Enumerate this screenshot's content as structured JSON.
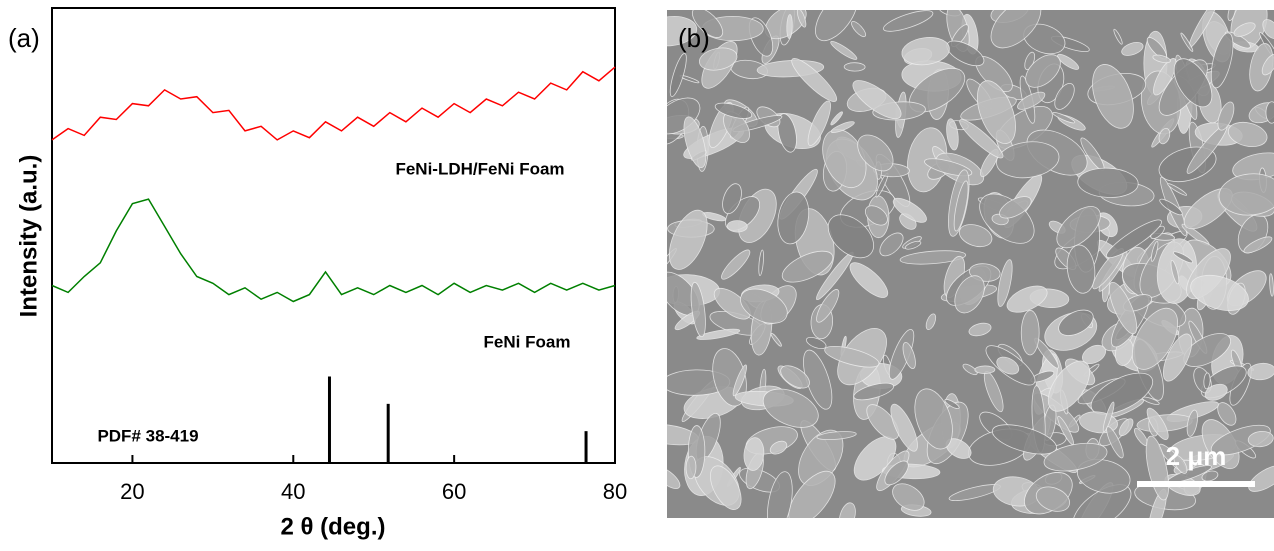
{
  "chart_data": {
    "type": "line",
    "panel_label": "(a)",
    "x_label": "2 θ (deg.)",
    "y_label": "Intensity (a.u.)",
    "xlim": [
      10,
      80
    ],
    "xticks": [
      20,
      40,
      60,
      80
    ],
    "ylim": [
      0,
      100
    ],
    "x": [
      10,
      12,
      14,
      16,
      18,
      20,
      22,
      24,
      26,
      28,
      30,
      32,
      34,
      36,
      38,
      40,
      42,
      44,
      46,
      48,
      50,
      52,
      54,
      56,
      58,
      60,
      62,
      64,
      66,
      68,
      70,
      72,
      74,
      76,
      78,
      80
    ],
    "series": [
      {
        "name": "FeNi-LDH/FeNi Foam",
        "color": "#ff0000",
        "values": [
          71,
          73.5,
          72,
          76,
          75.5,
          79,
          78.5,
          82,
          80,
          80.5,
          77,
          77.5,
          73,
          74,
          71,
          73,
          71.5,
          75,
          73,
          76,
          74,
          77,
          75,
          78,
          76,
          79,
          77,
          80,
          78.5,
          81.5,
          80,
          83.5,
          82,
          86,
          84,
          87
        ]
      },
      {
        "name": "FeNi Foam",
        "color": "#008000",
        "values": [
          39,
          37.5,
          41,
          44,
          51,
          57,
          58,
          52,
          46,
          41,
          39.5,
          37,
          38.5,
          36,
          37.5,
          35.5,
          37,
          42,
          37,
          38.5,
          37,
          39,
          37.5,
          39,
          37,
          39.5,
          37.5,
          39,
          38,
          39.5,
          37.5,
          39.5,
          38,
          39.5,
          38,
          39
        ]
      }
    ],
    "reference": {
      "name": "PDF# 38-419",
      "color": "#000000",
      "x": [
        44.5,
        51.8,
        76.4
      ],
      "values": [
        19,
        13,
        7
      ]
    }
  },
  "image": {
    "panel_label": "(b)",
    "scale_bar": "2 μm"
  }
}
